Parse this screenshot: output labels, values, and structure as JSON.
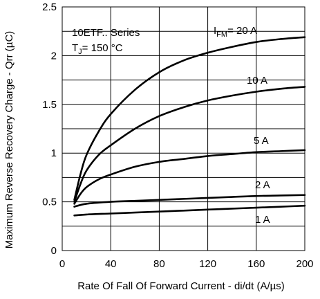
{
  "chart_data": {
    "type": "line",
    "xlabel": "Rate Of Fall Of Forward Current - di/dt (A/µs)",
    "ylabel": "Maximum Reverse Recovery Charge - Qrr (µC)",
    "xlim": [
      0,
      200
    ],
    "ylim": [
      0,
      2.5
    ],
    "x_ticks": [
      "0",
      "40",
      "80",
      "120",
      "160",
      "200"
    ],
    "y_ticks": [
      "0",
      "0.5",
      "1",
      "1.5",
      "2",
      "2.5"
    ],
    "grid": true,
    "annotations": {
      "series_label": "10ETF.. Series",
      "tj_main": "T",
      "tj_sub": "J",
      "tj_rest": "= 150 °C",
      "ifm_main": "I",
      "ifm_sub": "FM",
      "ifm_rest": "= 20 A"
    },
    "series": [
      {
        "name": "= 20 A",
        "label": "",
        "x": [
          10,
          15,
          20,
          30,
          40,
          60,
          80,
          100,
          120,
          140,
          160,
          180,
          200
        ],
        "y": [
          0.52,
          0.78,
          0.98,
          1.22,
          1.4,
          1.65,
          1.83,
          1.95,
          2.03,
          2.09,
          2.14,
          2.17,
          2.19
        ]
      },
      {
        "name": "10 A",
        "label": "10 A",
        "x": [
          10,
          15,
          20,
          30,
          40,
          60,
          80,
          100,
          120,
          140,
          160,
          180,
          200
        ],
        "y": [
          0.5,
          0.68,
          0.82,
          0.98,
          1.08,
          1.25,
          1.38,
          1.47,
          1.54,
          1.59,
          1.63,
          1.66,
          1.68
        ]
      },
      {
        "name": "5 A",
        "label": "5 A",
        "x": [
          10,
          15,
          20,
          30,
          40,
          60,
          80,
          100,
          120,
          140,
          160,
          180,
          200
        ],
        "y": [
          0.48,
          0.58,
          0.65,
          0.73,
          0.78,
          0.86,
          0.91,
          0.94,
          0.97,
          0.99,
          1.01,
          1.02,
          1.03
        ]
      },
      {
        "name": "2 A",
        "label": "2 A",
        "x": [
          10,
          20,
          40,
          60,
          80,
          100,
          120,
          140,
          160,
          180,
          200
        ],
        "y": [
          0.45,
          0.48,
          0.5,
          0.51,
          0.52,
          0.53,
          0.54,
          0.55,
          0.56,
          0.565,
          0.57
        ]
      },
      {
        "name": "1 A",
        "label": "1 A",
        "x": [
          10,
          20,
          40,
          60,
          80,
          100,
          120,
          140,
          160,
          180,
          200
        ],
        "y": [
          0.36,
          0.37,
          0.38,
          0.39,
          0.4,
          0.41,
          0.42,
          0.43,
          0.44,
          0.45,
          0.46
        ]
      }
    ]
  }
}
